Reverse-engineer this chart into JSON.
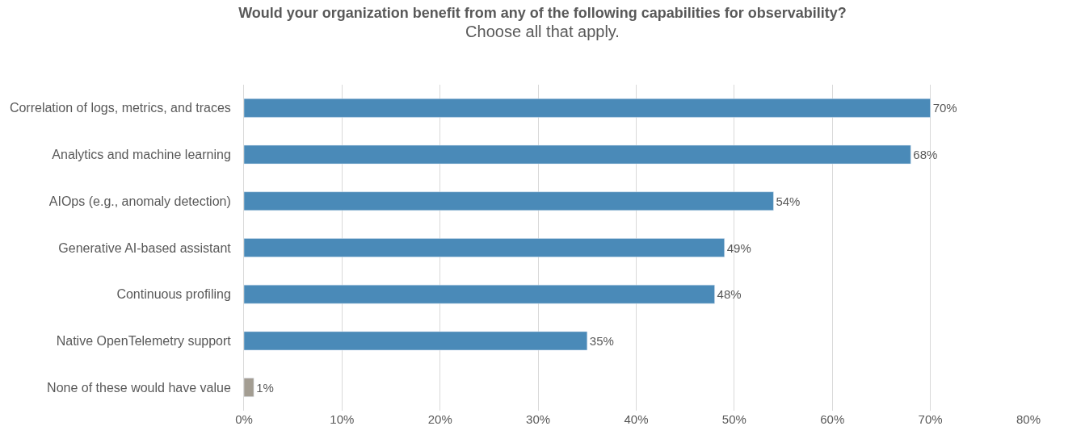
{
  "chart_data": {
    "type": "bar",
    "orientation": "horizontal",
    "title": "Would your organization benefit from any of the following capabilities for observability?",
    "subtitle": "Choose all that apply.",
    "categories": [
      "Correlation of logs, metrics, and traces",
      "Analytics and machine learning",
      "AIOps (e.g., anomaly detection)",
      "Generative AI-based assistant",
      "Continuous profiling",
      "Native OpenTelemetry support",
      "None of these would have value"
    ],
    "values": [
      70,
      68,
      54,
      49,
      48,
      35,
      1
    ],
    "colors": [
      "#4a8ab8",
      "#4a8ab8",
      "#4a8ab8",
      "#4a8ab8",
      "#4a8ab8",
      "#4a8ab8",
      "#a39d92"
    ],
    "value_labels": [
      "70%",
      "68%",
      "54%",
      "49%",
      "48%",
      "35%",
      "1%"
    ],
    "xlim": [
      0,
      80
    ],
    "xticks": [
      {
        "value": 0,
        "label": "0%"
      },
      {
        "value": 10,
        "label": "10%"
      },
      {
        "value": 20,
        "label": "20%"
      },
      {
        "value": 30,
        "label": "30%"
      },
      {
        "value": 40,
        "label": "40%"
      },
      {
        "value": 50,
        "label": "50%"
      },
      {
        "value": 60,
        "label": "60%"
      },
      {
        "value": 70,
        "label": "70%"
      },
      {
        "value": 80,
        "label": "80%"
      }
    ],
    "grid": "x"
  }
}
